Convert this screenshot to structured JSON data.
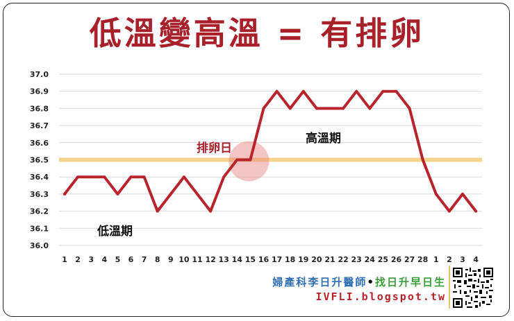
{
  "header": {
    "title": "低溫變高溫 = 有排卵"
  },
  "chart_data": {
    "type": "line",
    "title": "低溫變高溫 = 有排卵",
    "categories": [
      "1",
      "2",
      "3",
      "4",
      "5",
      "6",
      "7",
      "8",
      "9",
      "10",
      "11",
      "12",
      "13",
      "14",
      "15",
      "16",
      "17",
      "18",
      "19",
      "20",
      "21",
      "22",
      "23",
      "24",
      "25",
      "26",
      "27",
      "28",
      "1",
      "2",
      "3",
      "4"
    ],
    "series": [
      {
        "values": [
          36.3,
          36.4,
          36.4,
          36.4,
          36.3,
          36.4,
          36.4,
          36.2,
          36.3,
          36.4,
          36.3,
          36.2,
          36.4,
          36.5,
          36.5,
          36.8,
          36.9,
          36.8,
          36.9,
          36.8,
          36.8,
          36.8,
          36.9,
          36.8,
          36.9,
          36.9,
          36.8,
          36.5,
          36.3,
          36.2,
          36.3,
          36.2
        ]
      }
    ],
    "ylim": [
      36.0,
      37.0
    ],
    "y_ticks": [
      "36.0",
      "36.1",
      "36.2",
      "36.3",
      "36.4",
      "36.5",
      "36.6",
      "36.7",
      "36.8",
      "36.9",
      "37.0"
    ],
    "threshold": 36.5,
    "grid": true,
    "annotations": {
      "ovulation_label": "排卵日",
      "ovulation_index": 14,
      "high_phase_label": "高溫期",
      "low_phase_label": "低溫期"
    },
    "colors": {
      "line": "#b8242c",
      "threshold": "#f4d58d",
      "ovulation_circle": "#e77e7e",
      "grid": "#d9d9d9"
    }
  },
  "credits": {
    "line1_part1": "婦產科李日升醫師",
    "line1_dot": "•",
    "line1_part2": "找日升早日生",
    "line2": "IVFLI.blogspot.tw"
  }
}
